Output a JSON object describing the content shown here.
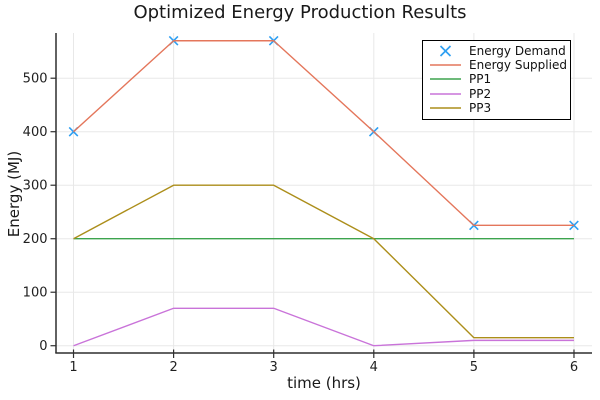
{
  "chart_data": {
    "type": "line",
    "title": "Optimized Energy Production Results",
    "xlabel": "time (hrs)",
    "ylabel": "Energy (MJ)",
    "x": [
      1,
      2,
      3,
      4,
      5,
      6
    ],
    "series": [
      {
        "name": "Energy Demand",
        "type": "scatter",
        "marker": "x",
        "color": "#2E9FF2",
        "values": [
          400,
          570,
          570,
          400,
          225,
          225
        ]
      },
      {
        "name": "Energy Supplied",
        "type": "line",
        "color": "#E4765B",
        "values": [
          400,
          570,
          570,
          400,
          225,
          225
        ]
      },
      {
        "name": "PP1",
        "type": "line",
        "color": "#3DA44E",
        "values": [
          200,
          200,
          200,
          200,
          200,
          200
        ]
      },
      {
        "name": "PP2",
        "type": "line",
        "color": "#C973D9",
        "values": [
          0,
          70,
          70,
          0,
          10,
          10
        ]
      },
      {
        "name": "PP3",
        "type": "line",
        "color": "#AC8E1A",
        "values": [
          200,
          300,
          300,
          200,
          15,
          15
        ]
      }
    ],
    "xticks": [
      1,
      2,
      3,
      4,
      5,
      6
    ],
    "yticks": [
      0,
      100,
      200,
      300,
      400,
      500
    ],
    "xlim": [
      0.825,
      6.18
    ],
    "ylim": [
      -13.6,
      584.5
    ],
    "grid": true,
    "legend_position": "top-right",
    "colors": {
      "grid": "#E8E8E8",
      "spine": "#2F2F2F",
      "tick_text": "#1F1F1F",
      "background": "#FFFFFF"
    }
  }
}
